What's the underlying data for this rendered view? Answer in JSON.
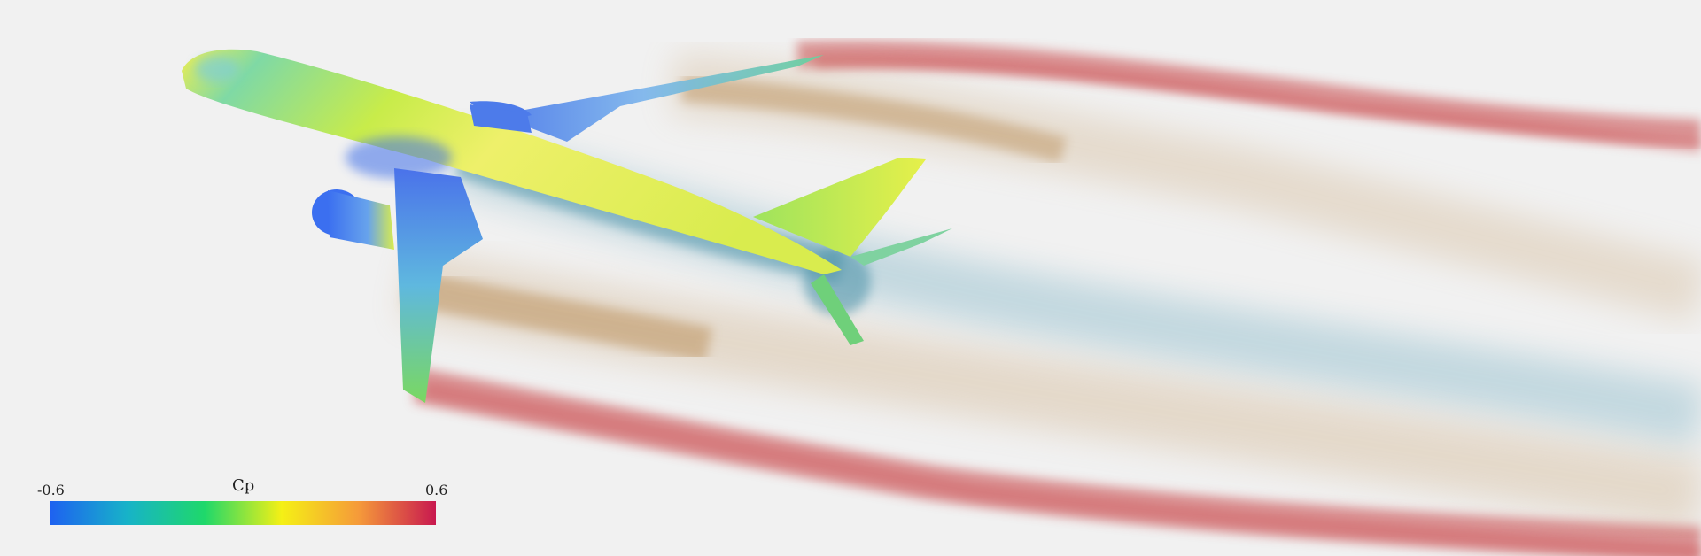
{
  "scene": {
    "description_colors": {
      "background": "#f1f1f1",
      "red_smoke": "#c8474a",
      "tan_smoke": "#c7a373",
      "blue_smoke": "#5aa0b8"
    }
  },
  "colorbar": {
    "title": "Cp",
    "min_label": "-0.6",
    "max_label": "0.6",
    "stops": [
      "#1e62f0",
      "#17b3c8",
      "#1fd86a",
      "#f5f015",
      "#f59a3a",
      "#c8184f"
    ]
  }
}
